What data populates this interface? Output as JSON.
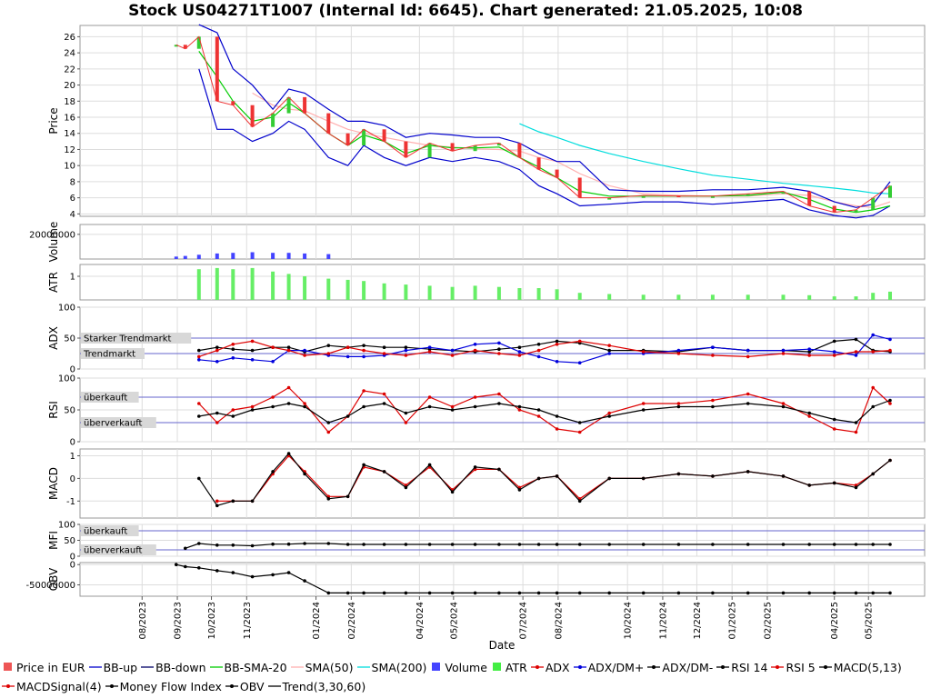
{
  "title": "Stock US04271T1007 (Internal Id: 6645). Chart generated: 21.05.2025, 10:08",
  "xlabel": "Date",
  "x_ticks": [
    "08/2023",
    "09/2023",
    "10/2023",
    "11/2023",
    "01/2024",
    "02/2024",
    "04/2024",
    "05/2024",
    "07/2024",
    "08/2024",
    "10/2024",
    "11/2024",
    "12/2024",
    "01/2025",
    "02/2025",
    "04/2025",
    "05/2025"
  ],
  "colors": {
    "price_up": "#33cc33",
    "price_down": "#ee3333",
    "bb": "#0000cc",
    "bb_sma": "#00cc00",
    "sma50": "#ffb0b0",
    "sma200": "#00dddd",
    "volume": "#4444ff",
    "atr": "#66ee66",
    "adx": "#dd0000",
    "dmplus": "#0000dd",
    "dmminus": "#000000",
    "rsi14": "#000000",
    "rsi5": "#dd0000",
    "macd": "#000000",
    "signal": "#dd0000",
    "mfi": "#000000",
    "obv": "#000000"
  },
  "panels": [
    {
      "id": "price",
      "ylabel": "Price",
      "ticks": [
        "4",
        "6",
        "8",
        "10",
        "12",
        "14",
        "16",
        "18",
        "20",
        "22",
        "24",
        "26"
      ],
      "ylim": [
        3.7,
        27.4
      ],
      "bands": []
    },
    {
      "id": "volume",
      "ylabel": "Volume",
      "ticks": [
        "20000000"
      ],
      "ylim": [
        0,
        28000000
      ],
      "bands": []
    },
    {
      "id": "atr",
      "ylabel": "ATR",
      "ticks": [
        "1"
      ],
      "ylim": [
        0,
        1.5
      ],
      "bands": []
    },
    {
      "id": "adx",
      "ylabel": "ADX",
      "ticks": [
        "0",
        "50",
        "100"
      ],
      "ylim": [
        0,
        100
      ],
      "bands": [
        {
          "label": "Starker Trendmarkt",
          "value": 50
        },
        {
          "label": "Trendmarkt",
          "value": 25
        }
      ]
    },
    {
      "id": "rsi",
      "ylabel": "RSI",
      "ticks": [
        "0",
        "50",
        "100"
      ],
      "ylim": [
        0,
        100
      ],
      "bands": [
        {
          "label": "überkauft",
          "value": 70
        },
        {
          "label": "überverkauft",
          "value": 30
        }
      ]
    },
    {
      "id": "macd",
      "ylabel": "MACD",
      "ticks": [
        "-1",
        "0",
        "1"
      ],
      "ylim": [
        -1.75,
        1.3
      ],
      "bands": []
    },
    {
      "id": "mfi",
      "ylabel": "MFI",
      "ticks": [
        "0",
        "50",
        "100"
      ],
      "ylim": [
        0,
        100
      ],
      "bands": [
        {
          "label": "überkauft",
          "value": 80
        },
        {
          "label": "überverkauft",
          "value": 20
        }
      ]
    },
    {
      "id": "obv",
      "ylabel": "OBV",
      "ticks": [
        "0",
        "-50000000"
      ],
      "ylim": [
        -78000000,
        5000000
      ],
      "bands": []
    }
  ],
  "legend": [
    {
      "label": "Price in EUR",
      "type": "square",
      "color": "#ee5555"
    },
    {
      "label": "BB-up",
      "type": "line",
      "color": "#0000cc"
    },
    {
      "label": "BB-down",
      "type": "line",
      "color": "#000066"
    },
    {
      "label": "BB-SMA-20",
      "type": "line",
      "color": "#00cc00"
    },
    {
      "label": "SMA(50)",
      "type": "line",
      "color": "#ffb0b0"
    },
    {
      "label": "SMA(200)",
      "type": "line",
      "color": "#00dddd"
    },
    {
      "label": "Volume",
      "type": "square",
      "color": "#4444ff"
    },
    {
      "label": "ATR",
      "type": "square",
      "color": "#44ee44"
    },
    {
      "label": "ADX",
      "type": "dotline",
      "color": "#dd0000"
    },
    {
      "label": "ADX/DM+",
      "type": "dotline",
      "color": "#0000dd"
    },
    {
      "label": "ADX/DM-",
      "type": "dotline",
      "color": "#000000"
    },
    {
      "label": "RSI 14",
      "type": "dotline",
      "color": "#000000"
    },
    {
      "label": "RSI 5",
      "type": "dotline",
      "color": "#dd0000"
    },
    {
      "label": "MACD(5,13)",
      "type": "dotline",
      "color": "#000000"
    },
    {
      "label": "MACDSignal(4)",
      "type": "dotline",
      "color": "#dd0000"
    },
    {
      "label": "Money Flow Index",
      "type": "dotline",
      "color": "#000000"
    },
    {
      "label": "OBV",
      "type": "dotline",
      "color": "#000000"
    },
    {
      "label": "Trend(3,30,60)",
      "type": "line",
      "color": "#000000"
    }
  ],
  "chart_data": {
    "type": "line",
    "title": "Stock US04271T1007 (Internal Id: 6645). Chart generated: 21.05.2025, 10:08",
    "xlabel": "Date",
    "x": [
      "2023-08-31",
      "2023-09-08",
      "2023-09-20",
      "2023-10-06",
      "2023-10-20",
      "2023-11-06",
      "2023-11-24",
      "2023-12-08",
      "2023-12-22",
      "2024-01-12",
      "2024-01-29",
      "2024-02-12",
      "2024-03-01",
      "2024-03-20",
      "2024-04-10",
      "2024-04-30",
      "2024-05-20",
      "2024-06-10",
      "2024-06-28",
      "2024-07-15",
      "2024-07-31",
      "2024-08-20",
      "2024-09-15",
      "2024-10-15",
      "2024-11-15",
      "2024-12-15",
      "2025-01-15",
      "2025-02-15",
      "2025-03-10",
      "2025-04-01",
      "2025-04-20",
      "2025-05-05",
      "2025-05-20"
    ],
    "series": [
      {
        "name": "Price in EUR",
        "values": [
          25.0,
          24.5,
          26.0,
          18.0,
          17.5,
          14.8,
          16.5,
          18.5,
          16.5,
          14.0,
          12.5,
          14.5,
          13.0,
          11.0,
          12.8,
          11.8,
          12.5,
          12.8,
          11.0,
          9.5,
          8.5,
          6.0,
          6.0,
          6.3,
          6.2,
          6.2,
          6.5,
          6.8,
          5.0,
          4.2,
          4.5,
          6.0,
          7.5
        ]
      },
      {
        "name": "BB-up",
        "values": [
          null,
          null,
          27.5,
          26.5,
          22.0,
          20.0,
          17.0,
          19.5,
          19.0,
          17.0,
          15.5,
          15.5,
          15.0,
          13.5,
          14.0,
          13.8,
          13.5,
          13.5,
          12.8,
          11.5,
          10.5,
          10.5,
          7.0,
          6.8,
          6.8,
          7.0,
          7.0,
          7.3,
          6.8,
          5.5,
          4.8,
          5.2,
          8.0
        ]
      },
      {
        "name": "BB-down",
        "values": [
          null,
          null,
          22.0,
          14.5,
          14.5,
          13.0,
          14.0,
          15.5,
          14.5,
          11.0,
          10.0,
          12.5,
          11.0,
          10.0,
          11.0,
          10.5,
          11.0,
          10.5,
          9.5,
          7.5,
          6.5,
          5.0,
          5.2,
          5.5,
          5.5,
          5.2,
          5.5,
          5.8,
          4.5,
          3.8,
          3.5,
          3.8,
          5.0
        ]
      },
      {
        "name": "BB-SMA-20",
        "values": [
          null,
          null,
          24.2,
          21.0,
          18.0,
          15.5,
          16.0,
          17.8,
          16.5,
          14.0,
          12.5,
          13.8,
          13.0,
          11.5,
          12.5,
          12.2,
          12.2,
          12.3,
          11.0,
          9.8,
          8.5,
          6.8,
          6.2,
          6.2,
          6.2,
          6.2,
          6.3,
          6.7,
          5.8,
          4.6,
          4.2,
          4.5,
          5.0
        ]
      },
      {
        "name": "SMA(50)",
        "values": [
          null,
          null,
          null,
          null,
          null,
          19.0,
          17.5,
          17.0,
          16.8,
          15.5,
          14.5,
          14.0,
          13.5,
          13.0,
          12.5,
          12.3,
          12.1,
          12.0,
          11.8,
          11.0,
          10.5,
          9.0,
          7.5,
          6.5,
          6.3,
          6.2,
          6.2,
          6.5,
          6.3,
          5.5,
          5.0,
          4.8,
          5.5
        ]
      },
      {
        "name": "SMA(200)",
        "values": [
          null,
          null,
          null,
          null,
          null,
          null,
          null,
          null,
          null,
          null,
          null,
          null,
          null,
          null,
          null,
          null,
          null,
          null,
          15.2,
          14.2,
          13.5,
          12.5,
          11.5,
          10.5,
          9.6,
          8.8,
          8.3,
          7.8,
          7.5,
          7.2,
          6.9,
          6.6,
          6.5
        ]
      },
      {
        "name": "Volume",
        "values": [
          2000000,
          2500000,
          3500000,
          4500000,
          5000000,
          5500000,
          5000000,
          5000000,
          4500000,
          4000000,
          null,
          null,
          null,
          null,
          null,
          null,
          null,
          null,
          null,
          null,
          null,
          null,
          null,
          null,
          null,
          null,
          null,
          null,
          null,
          null,
          null,
          null,
          null
        ]
      },
      {
        "name": "ATR",
        "values": [
          null,
          null,
          1.3,
          1.35,
          1.3,
          1.35,
          1.2,
          1.1,
          1.0,
          0.9,
          0.85,
          0.8,
          0.7,
          0.65,
          0.6,
          0.55,
          0.6,
          0.55,
          0.5,
          0.5,
          0.45,
          0.3,
          0.25,
          0.22,
          0.22,
          0.22,
          0.22,
          0.22,
          0.2,
          0.15,
          0.15,
          0.3,
          0.35
        ]
      },
      {
        "name": "ADX",
        "values": [
          null,
          null,
          20,
          30,
          40,
          45,
          35,
          30,
          22,
          25,
          35,
          30,
          25,
          22,
          28,
          22,
          30,
          25,
          22,
          30,
          40,
          45,
          38,
          28,
          25,
          22,
          20,
          25,
          22,
          22,
          28,
          28,
          30
        ]
      },
      {
        "name": "ADX/DM+",
        "values": [
          null,
          null,
          15,
          12,
          18,
          15,
          12,
          30,
          30,
          22,
          20,
          20,
          22,
          30,
          35,
          30,
          40,
          42,
          28,
          20,
          12,
          10,
          25,
          25,
          30,
          35,
          30,
          30,
          32,
          28,
          22,
          55,
          48
        ]
      },
      {
        "name": "ADX/DM-",
        "values": [
          null,
          null,
          30,
          35,
          32,
          30,
          35,
          35,
          28,
          38,
          35,
          38,
          35,
          35,
          32,
          30,
          28,
          32,
          35,
          40,
          45,
          42,
          30,
          30,
          28,
          35,
          30,
          30,
          28,
          45,
          48,
          30,
          28
        ]
      },
      {
        "name": "RSI 14",
        "values": [
          null,
          null,
          40,
          45,
          40,
          50,
          55,
          60,
          55,
          30,
          40,
          55,
          60,
          45,
          55,
          50,
          55,
          60,
          55,
          50,
          40,
          30,
          40,
          50,
          55,
          55,
          60,
          55,
          45,
          35,
          30,
          55,
          65
        ]
      },
      {
        "name": "RSI 5",
        "values": [
          null,
          null,
          60,
          30,
          50,
          55,
          70,
          85,
          60,
          15,
          40,
          80,
          75,
          30,
          70,
          55,
          70,
          75,
          50,
          40,
          20,
          15,
          45,
          60,
          60,
          65,
          75,
          60,
          40,
          20,
          15,
          85,
          60
        ]
      },
      {
        "name": "MACD(5,13)",
        "values": [
          null,
          null,
          0.0,
          -1.2,
          -1.0,
          -1.0,
          0.3,
          1.1,
          0.2,
          -0.9,
          -0.8,
          0.6,
          0.3,
          -0.4,
          0.6,
          -0.6,
          0.5,
          0.4,
          -0.5,
          0.0,
          0.1,
          -1.0,
          0.0,
          0.0,
          0.2,
          0.1,
          0.3,
          0.1,
          -0.3,
          -0.2,
          -0.4,
          0.2,
          0.8
        ]
      },
      {
        "name": "MACDSignal(4)",
        "values": [
          null,
          null,
          null,
          -1.0,
          -1.0,
          -1.0,
          0.2,
          1.0,
          0.3,
          -0.8,
          -0.8,
          0.5,
          0.3,
          -0.3,
          0.5,
          -0.5,
          0.4,
          0.4,
          -0.4,
          0.0,
          0.1,
          -0.9,
          0.0,
          0.0,
          0.2,
          0.1,
          0.3,
          0.1,
          -0.3,
          -0.2,
          -0.3,
          0.2,
          0.8
        ]
      },
      {
        "name": "Money Flow Index",
        "values": [
          null,
          25,
          40,
          35,
          35,
          33,
          38,
          38,
          40,
          40,
          37,
          37,
          37,
          37,
          37,
          37,
          37,
          37,
          37,
          37,
          37,
          37,
          37,
          37,
          37,
          37,
          37,
          37,
          37,
          37,
          37,
          37,
          37
        ]
      },
      {
        "name": "OBV",
        "values": [
          0,
          -5000000,
          -8000000,
          -15000000,
          -20000000,
          -30000000,
          -25000000,
          -20000000,
          -40000000,
          -70000000,
          -70000000,
          -70000000,
          -70000000,
          -70000000,
          -70000000,
          -70000000,
          -70000000,
          -70000000,
          -70000000,
          -70000000,
          -70000000,
          -70000000,
          -70000000,
          -70000000,
          -70000000,
          -70000000,
          -70000000,
          -70000000,
          -70000000,
          -70000000,
          -70000000,
          -70000000,
          -70000000
        ]
      }
    ],
    "grid": true,
    "legend_position": "bottom"
  }
}
